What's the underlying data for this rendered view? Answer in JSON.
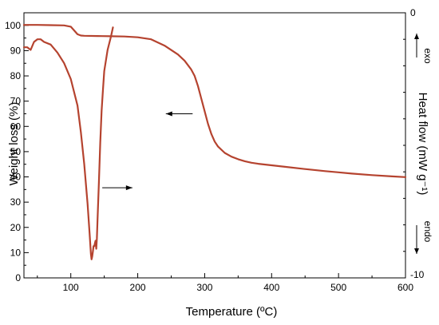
{
  "chart_data": {
    "type": "line",
    "xlabel": "Temperature (ºC)",
    "ylabel_left": "Weight loss (%)",
    "ylabel_right": "Heat flow (mW g⁻¹)",
    "xlim": [
      30,
      600
    ],
    "ylim_left": [
      0,
      105
    ],
    "ylim_right": [
      -10,
      0
    ],
    "x_ticks": [
      100,
      200,
      300,
      400,
      500,
      600
    ],
    "y_ticks_left": [
      0,
      10,
      20,
      30,
      40,
      50,
      60,
      70,
      80,
      90,
      100
    ],
    "y_ticks_right": [
      0,
      -10
    ],
    "right_annotations": {
      "top": "exo",
      "bottom": "endo"
    },
    "grid": false,
    "series": [
      {
        "axis": "left",
        "color": "#b5432f",
        "x": [
          30,
          50,
          70,
          90,
          100,
          105,
          110,
          115,
          120,
          140,
          160,
          180,
          200,
          220,
          240,
          260,
          270,
          280,
          285,
          290,
          295,
          300,
          305,
          310,
          315,
          320,
          330,
          340,
          350,
          360,
          370,
          380,
          400,
          420,
          450,
          480,
          500,
          520,
          550,
          580,
          600
        ],
        "values": [
          100.2,
          100.2,
          100.1,
          100.0,
          99.5,
          98.0,
          96.5,
          96.0,
          95.9,
          95.8,
          95.7,
          95.6,
          95.3,
          94.5,
          92.0,
          88.5,
          86.0,
          82.5,
          80.0,
          76.0,
          71.0,
          66.0,
          61.0,
          57.0,
          54.0,
          52.0,
          49.5,
          48.0,
          47.0,
          46.2,
          45.6,
          45.2,
          44.6,
          44.0,
          43.1,
          42.3,
          41.8,
          41.3,
          40.7,
          40.2,
          39.9
        ]
      },
      {
        "axis": "right",
        "color": "#b5432f",
        "x": [
          30,
          35,
          40,
          45,
          50,
          55,
          60,
          70,
          80,
          90,
          100,
          110,
          115,
          120,
          125,
          128,
          130,
          131,
          132,
          133,
          134,
          135,
          136,
          137,
          138,
          139,
          140,
          142,
          144,
          146,
          148,
          150,
          155,
          160,
          163
        ],
        "values": [
          -1.3,
          -1.3,
          -1.4,
          -1.1,
          -1.0,
          -1.0,
          -1.1,
          -1.2,
          -1.5,
          -1.9,
          -2.5,
          -3.5,
          -4.5,
          -5.7,
          -7.2,
          -8.3,
          -9.1,
          -9.3,
          -9.2,
          -9.0,
          -8.8,
          -8.8,
          -8.7,
          -8.6,
          -8.9,
          -8.5,
          -7.8,
          -6.4,
          -4.9,
          -3.7,
          -2.9,
          -2.2,
          -1.4,
          -0.9,
          -0.55
        ]
      }
    ]
  }
}
